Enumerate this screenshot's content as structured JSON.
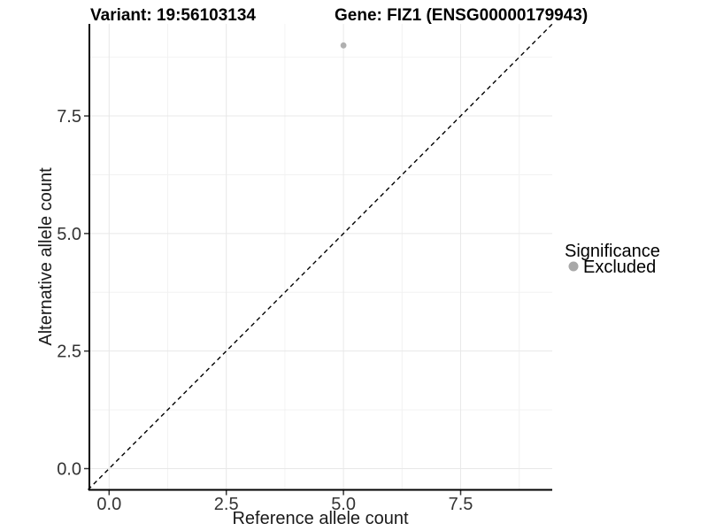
{
  "titles": {
    "variant": "Variant: 19:56103134",
    "gene": "Gene: FIZ1 (ENSG00000179943)"
  },
  "chart_data": {
    "type": "scatter",
    "title": "Variant: 19:56103134    Gene: FIZ1 (ENSG00000179943)",
    "xlabel": "Reference allele count",
    "ylabel": "Alternative allele count",
    "xlim": [
      -0.45,
      9.45
    ],
    "ylim": [
      -0.45,
      9.45
    ],
    "x_tick_values": [
      0,
      2.5,
      5,
      7.5
    ],
    "x_tick_labels": [
      "0.0",
      "2.5",
      "5.0",
      "7.5"
    ],
    "y_tick_values": [
      0,
      2.5,
      5,
      7.5
    ],
    "y_tick_labels": [
      "0.0",
      "2.5",
      "5.0",
      "7.5"
    ],
    "minor_grid_values": [
      1.25,
      3.75,
      6.25,
      8.75
    ],
    "grid": "major and minor gridlines, light gray, white background",
    "reference_line": {
      "slope": 1,
      "intercept": 0,
      "style": "dashed",
      "color": "#000000"
    },
    "series": [
      {
        "name": "Excluded",
        "color": "#b0b0b0",
        "points": [
          {
            "x": 5,
            "y": 9
          }
        ]
      }
    ],
    "legend": {
      "position": "right",
      "title": "Significance",
      "items": [
        {
          "label": "Excluded",
          "color": "#a8a8a8"
        }
      ]
    }
  },
  "colors": {
    "background": "#ffffff",
    "grid_major": "#e8e8e8",
    "grid_minor": "#f2f2f2",
    "axis_line": "#000000",
    "tick_mark": "#333333",
    "tick_text": "#333333",
    "point": "#b0b0b0",
    "legend_dot": "#a8a8a8",
    "reference_line": "#000000"
  }
}
